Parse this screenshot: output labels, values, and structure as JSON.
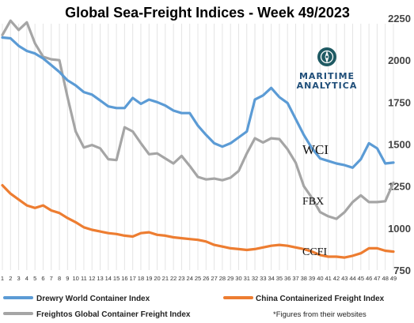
{
  "chart_data": {
    "type": "line",
    "title": "Global Sea-Freight Indices -  Week 49/2023",
    "x": [
      1,
      2,
      3,
      4,
      5,
      6,
      7,
      8,
      9,
      10,
      11,
      12,
      13,
      14,
      15,
      16,
      17,
      18,
      19,
      20,
      21,
      22,
      23,
      24,
      25,
      26,
      27,
      28,
      29,
      30,
      31,
      32,
      33,
      34,
      35,
      36,
      37,
      38,
      39,
      40,
      41,
      42,
      43,
      44,
      45,
      46,
      47,
      48,
      49
    ],
    "ylim": [
      750,
      2250
    ],
    "yticks": [
      750,
      1000,
      1250,
      1500,
      1750,
      2000,
      2250
    ],
    "grid": "vertical",
    "series": [
      {
        "name": "Drewry World Container Index",
        "color": "#5b9bd5",
        "label": "WCI",
        "values": [
          2135,
          2130,
          2085,
          2055,
          2040,
          2010,
          1970,
          1930,
          1880,
          1850,
          1810,
          1795,
          1760,
          1725,
          1715,
          1715,
          1775,
          1740,
          1765,
          1750,
          1730,
          1700,
          1685,
          1685,
          1610,
          1555,
          1505,
          1485,
          1505,
          1540,
          1575,
          1765,
          1790,
          1835,
          1780,
          1745,
          1650,
          1555,
          1475,
          1415,
          1400,
          1385,
          1375,
          1360,
          1410,
          1505,
          1475,
          1385,
          1390
        ]
      },
      {
        "name": "Freightos Global Container Freight Index",
        "color": "#a5a5a5",
        "label": "FBX",
        "values": [
          2150,
          2235,
          2180,
          2225,
          2100,
          2020,
          2005,
          2000,
          1780,
          1575,
          1480,
          1495,
          1475,
          1410,
          1405,
          1600,
          1575,
          1505,
          1440,
          1445,
          1415,
          1385,
          1430,
          1370,
          1305,
          1290,
          1295,
          1285,
          1300,
          1340,
          1445,
          1535,
          1510,
          1535,
          1530,
          1470,
          1390,
          1250,
          1180,
          1095,
          1070,
          1055,
          1095,
          1155,
          1195,
          1155,
          1155,
          1160,
          1270
        ]
      },
      {
        "name": "China Containerized Freight Index",
        "color": "#ed7d31",
        "label": "CCFI",
        "values": [
          1255,
          1205,
          1170,
          1135,
          1120,
          1135,
          1105,
          1090,
          1060,
          1035,
          1005,
          990,
          980,
          970,
          965,
          955,
          950,
          970,
          975,
          960,
          955,
          945,
          940,
          935,
          930,
          920,
          900,
          890,
          880,
          875,
          870,
          875,
          885,
          895,
          900,
          895,
          885,
          875,
          860,
          840,
          830,
          830,
          825,
          835,
          850,
          880,
          880,
          865,
          860
        ]
      }
    ],
    "legend": {
      "placement": "bottom",
      "items": [
        "Drewry World Container Index",
        "China Containerized Freight Index",
        "Freightos Global Container Freight Index"
      ]
    },
    "note": "*Figures from their websites"
  },
  "logo": {
    "line1": "MARITIME",
    "line2": "ANALYTICA"
  }
}
